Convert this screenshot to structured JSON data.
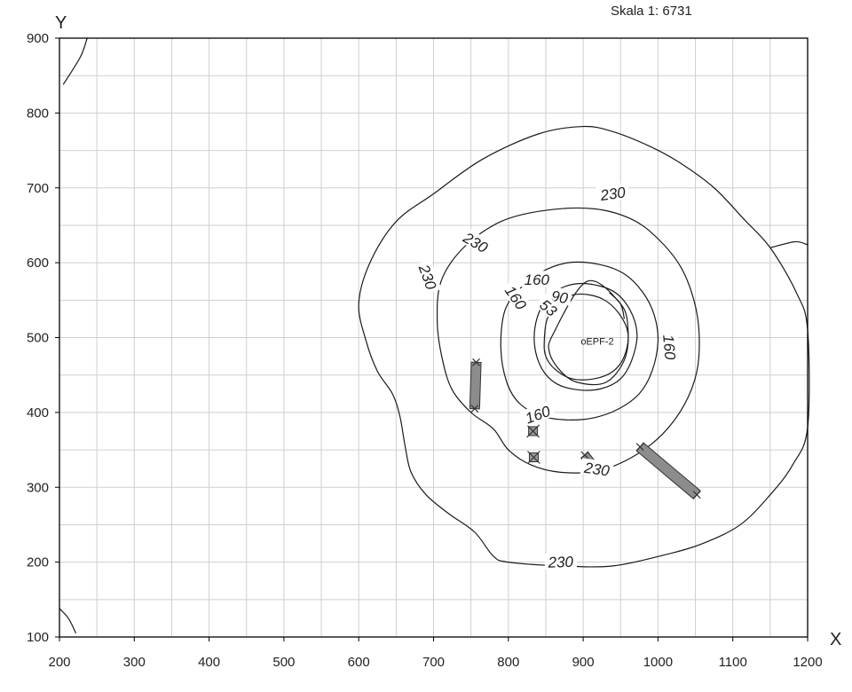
{
  "scale_label": "Skala 1: 6731",
  "axes": {
    "x_name": "X",
    "y_name": "Y",
    "x_range": [
      200,
      1200
    ],
    "y_range": [
      100,
      900
    ],
    "x_ticks": [
      "200",
      "300",
      "400",
      "500",
      "600",
      "700",
      "800",
      "900",
      "1000",
      "1100",
      "1200"
    ],
    "y_ticks": [
      "100",
      "200",
      "300",
      "400",
      "500",
      "600",
      "700",
      "800",
      "900"
    ],
    "grid_step": 50
  },
  "well": {
    "label": "oEPF-2",
    "x": 905,
    "y": 495
  },
  "contour_labels": [
    {
      "text": "230",
      "x": 940,
      "y": 690,
      "angle": 8
    },
    {
      "text": "230",
      "x": 755,
      "y": 625,
      "angle": -30
    },
    {
      "text": "230",
      "x": 690,
      "y": 580,
      "angle": -70
    },
    {
      "text": "230",
      "x": 918,
      "y": 322,
      "angle": -8
    },
    {
      "text": "230",
      "x": 870,
      "y": 198,
      "angle": 2
    },
    {
      "text": "160",
      "x": 838,
      "y": 575,
      "angle": 0
    },
    {
      "text": "160",
      "x": 808,
      "y": 552,
      "angle": -55
    },
    {
      "text": "160",
      "x": 1013,
      "y": 487,
      "angle": -85
    },
    {
      "text": "160",
      "x": 840,
      "y": 395,
      "angle": 20
    },
    {
      "text": "90",
      "x": 868,
      "y": 552,
      "angle": -10
    },
    {
      "text": "53",
      "x": 852,
      "y": 538,
      "angle": -40
    }
  ],
  "contours": [
    {
      "level": 230,
      "points": [
        [
          650,
          655
        ],
        [
          700,
          692
        ],
        [
          765,
          738
        ],
        [
          840,
          772
        ],
        [
          900,
          782
        ],
        [
          940,
          775
        ],
        [
          990,
          755
        ],
        [
          1030,
          733
        ],
        [
          1075,
          700
        ],
        [
          1115,
          658
        ],
        [
          1150,
          620
        ],
        [
          1185,
          560
        ],
        [
          1200,
          510
        ],
        [
          1200,
          380
        ],
        [
          1180,
          330
        ],
        [
          1150,
          290
        ],
        [
          1110,
          250
        ],
        [
          1060,
          225
        ],
        [
          1010,
          210
        ],
        [
          940,
          195
        ],
        [
          870,
          195
        ],
        [
          800,
          200
        ],
        [
          780,
          208
        ],
        [
          755,
          240
        ],
        [
          720,
          265
        ],
        [
          690,
          290
        ],
        [
          670,
          320
        ],
        [
          662,
          355
        ],
        [
          655,
          395
        ],
        [
          645,
          425
        ],
        [
          625,
          455
        ],
        [
          610,
          495
        ],
        [
          600,
          545
        ],
        [
          615,
          600
        ],
        [
          650,
          655
        ]
      ]
    },
    {
      "level": 230,
      "points": [
        [
          1150,
          620
        ],
        [
          1183,
          628
        ],
        [
          1200,
          624
        ]
      ]
    },
    {
      "level": 230,
      "points": [
        [
          205,
          838
        ],
        [
          228,
          875
        ],
        [
          237,
          900
        ]
      ]
    },
    {
      "level": 230,
      "points": [
        [
          200,
          138
        ],
        [
          212,
          125
        ],
        [
          222,
          105
        ]
      ]
    },
    {
      "level": 230,
      "points": [
        [
          710,
          575
        ],
        [
          740,
          620
        ],
        [
          790,
          655
        ],
        [
          850,
          670
        ],
        [
          915,
          672
        ],
        [
          965,
          658
        ],
        [
          1000,
          632
        ],
        [
          1030,
          595
        ],
        [
          1048,
          550
        ],
        [
          1055,
          505
        ],
        [
          1052,
          455
        ],
        [
          1035,
          410
        ],
        [
          1005,
          370
        ],
        [
          965,
          340
        ],
        [
          920,
          322
        ],
        [
          870,
          320
        ],
        [
          830,
          330
        ],
        [
          800,
          350
        ],
        [
          780,
          378
        ],
        [
          750,
          400
        ],
        [
          725,
          430
        ],
        [
          712,
          470
        ],
        [
          705,
          520
        ],
        [
          710,
          575
        ]
      ]
    },
    {
      "level": 160,
      "points": [
        [
          790,
          485
        ],
        [
          795,
          535
        ],
        [
          815,
          565
        ],
        [
          845,
          588
        ],
        [
          880,
          600
        ],
        [
          920,
          598
        ],
        [
          955,
          585
        ],
        [
          980,
          560
        ],
        [
          995,
          530
        ],
        [
          1000,
          495
        ],
        [
          992,
          455
        ],
        [
          975,
          425
        ],
        [
          948,
          405
        ],
        [
          915,
          393
        ],
        [
          880,
          390
        ],
        [
          845,
          395
        ],
        [
          815,
          412
        ],
        [
          798,
          440
        ],
        [
          790,
          485
        ]
      ]
    },
    {
      "level": 90,
      "points": [
        [
          835,
          490
        ],
        [
          838,
          525
        ],
        [
          852,
          552
        ],
        [
          875,
          568
        ],
        [
          905,
          572
        ],
        [
          940,
          562
        ],
        [
          962,
          538
        ],
        [
          972,
          505
        ],
        [
          965,
          470
        ],
        [
          950,
          445
        ],
        [
          925,
          432
        ],
        [
          895,
          430
        ],
        [
          865,
          438
        ],
        [
          845,
          458
        ],
        [
          835,
          490
        ]
      ]
    },
    {
      "level": 53,
      "points": [
        [
          848,
          495
        ],
        [
          852,
          525
        ],
        [
          868,
          548
        ],
        [
          893,
          558
        ],
        [
          925,
          552
        ],
        [
          948,
          532
        ],
        [
          960,
          505
        ],
        [
          955,
          475
        ],
        [
          940,
          455
        ],
        [
          915,
          445
        ],
        [
          885,
          445
        ],
        [
          862,
          458
        ],
        [
          850,
          475
        ],
        [
          848,
          495
        ]
      ]
    },
    {
      "level": 53,
      "points": [
        [
          860,
          505
        ],
        [
          905,
          575
        ],
        [
          950,
          545
        ],
        [
          960,
          510
        ],
        [
          955,
          470
        ],
        [
          930,
          440
        ],
        [
          893,
          440
        ],
        [
          870,
          455
        ],
        [
          855,
          480
        ],
        [
          860,
          505
        ]
      ]
    },
    {
      "level": 53,
      "points": [
        [
          935,
          560
        ],
        [
          950,
          545
        ],
        [
          955,
          525
        ]
      ]
    }
  ],
  "walls": [
    {
      "from": [
        757,
        467
      ],
      "to": [
        755,
        405
      ],
      "width": 11
    },
    {
      "from": [
        902,
        343
      ],
      "to": [
        920,
        320
      ],
      "width": 10
    },
    {
      "from": [
        976,
        354
      ],
      "to": [
        1052,
        290
      ],
      "width": 12
    }
  ],
  "crosses": [
    {
      "x": 833,
      "y": 375
    },
    {
      "x": 834,
      "y": 340
    }
  ]
}
